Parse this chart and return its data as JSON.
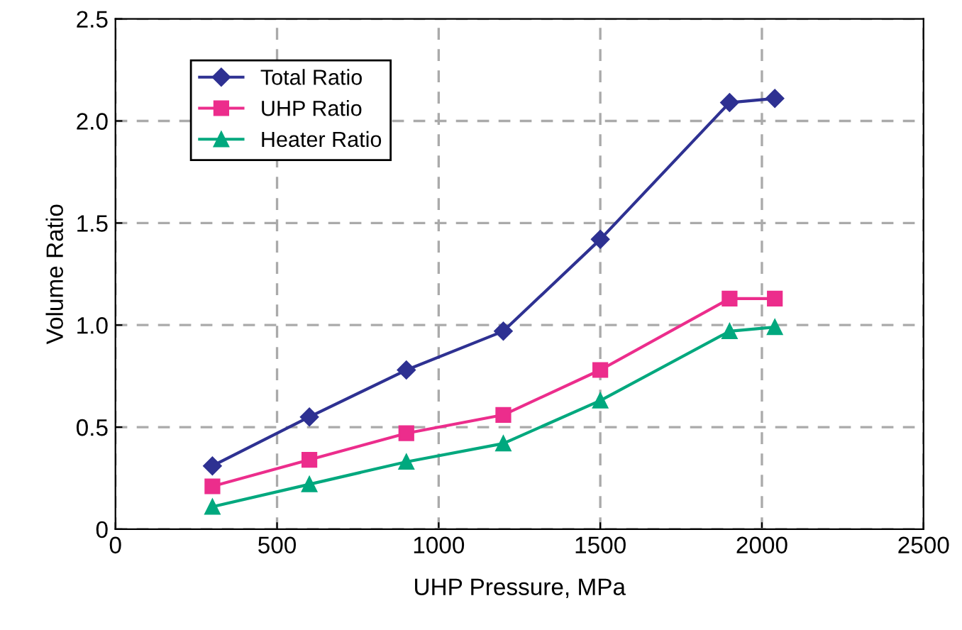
{
  "chart_data": {
    "type": "line",
    "xlabel": "UHP Pressure, MPa",
    "ylabel": "Volume Ratio",
    "xlim": [
      0,
      2500
    ],
    "xticks": [
      0,
      500,
      1000,
      1500,
      2000,
      2500
    ],
    "ylim": [
      0,
      2.5
    ],
    "yticks": [
      {
        "value": 0,
        "label": "0"
      },
      0.5,
      {
        "value": 1,
        "label": "1.0"
      },
      1.5,
      {
        "value": 2,
        "label": "2.0"
      },
      2.5
    ],
    "grid": true,
    "legend": "top left",
    "line_style": "solid",
    "series": [
      {
        "name": "Total Ratio",
        "color": "#2e3192",
        "marker": "diamond",
        "x": [
          300,
          600,
          900,
          1200,
          1500,
          1900,
          2040
        ],
        "values": [
          0.31,
          0.55,
          0.78,
          0.97,
          1.42,
          2.09,
          2.11
        ]
      },
      {
        "name": "UHP Ratio",
        "color": "#ec2d8c",
        "marker": "square",
        "x": [
          300,
          600,
          900,
          1200,
          1500,
          1900,
          2040
        ],
        "values": [
          0.21,
          0.34,
          0.47,
          0.56,
          0.78,
          1.13,
          1.13
        ]
      },
      {
        "name": "Heater Ratio",
        "color": "#00a87e",
        "marker": "triangle",
        "x": [
          300,
          600,
          900,
          1200,
          1500,
          1900,
          2040
        ],
        "values": [
          0.11,
          0.22,
          0.33,
          0.42,
          0.63,
          0.97,
          0.99
        ]
      }
    ]
  }
}
